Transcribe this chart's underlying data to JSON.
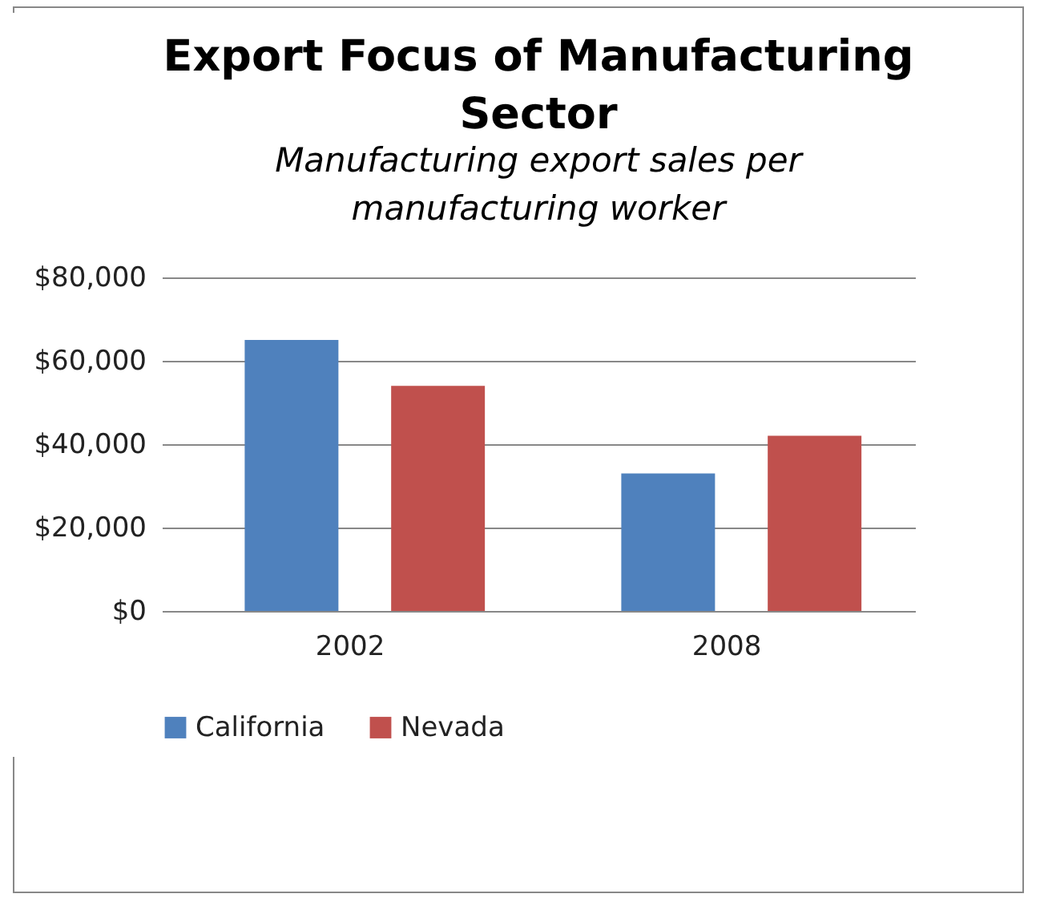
{
  "chart_data": {
    "type": "bar",
    "title": "Export Focus of Manufacturing Sector",
    "subtitle": "Manufacturing export sales per manufacturing worker",
    "categories": [
      "2002",
      "2008"
    ],
    "series": [
      {
        "name": "California",
        "color": "#4f81bd",
        "values": [
          65000,
          33000
        ]
      },
      {
        "name": "Nevada",
        "color": "#c0504d",
        "values": [
          54000,
          42000
        ]
      }
    ],
    "ylim": [
      0,
      80000
    ],
    "yticks": [
      {
        "value": 0,
        "label": "$0"
      },
      {
        "value": 20000,
        "label": "$20,000"
      },
      {
        "value": 40000,
        "label": "$40,000"
      },
      {
        "value": 60000,
        "label": "$60,000"
      },
      {
        "value": 80000,
        "label": "$80,000"
      }
    ],
    "grid": "y",
    "legend": "bottom"
  }
}
